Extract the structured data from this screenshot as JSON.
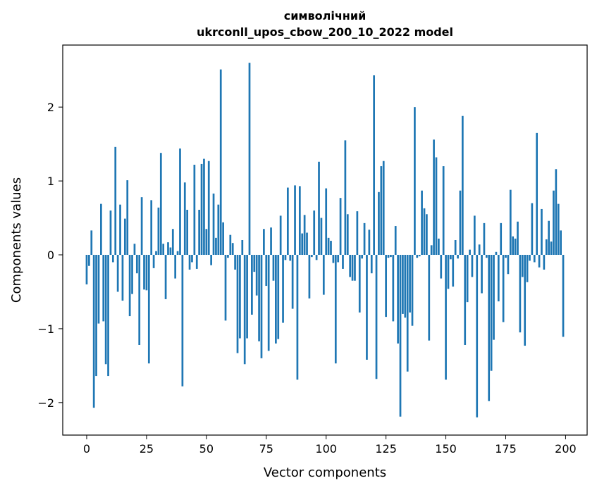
{
  "chart_data": {
    "type": "bar",
    "title_line1": "символічний",
    "title_line2": "ukrconll_upos_cbow_200_10_2022 model",
    "xlabel": "Vector components",
    "ylabel": "Components values",
    "xlim": [
      -10,
      209
    ],
    "ylim": [
      -2.44,
      2.84
    ],
    "xticks": [
      0,
      25,
      50,
      75,
      100,
      125,
      150,
      175,
      200
    ],
    "yticks": [
      -2,
      -1,
      0,
      1,
      2
    ],
    "ytick_labels": [
      "−2",
      "−1",
      "0",
      "1",
      "2"
    ],
    "bar_color": "#1f77b4",
    "grid": false,
    "x": [
      0,
      1,
      2,
      3,
      4,
      5,
      6,
      7,
      8,
      9,
      10,
      11,
      12,
      13,
      14,
      15,
      16,
      17,
      18,
      19,
      20,
      21,
      22,
      23,
      24,
      25,
      26,
      27,
      28,
      29,
      30,
      31,
      32,
      33,
      34,
      35,
      36,
      37,
      38,
      39,
      40,
      41,
      42,
      43,
      44,
      45,
      46,
      47,
      48,
      49,
      50,
      51,
      52,
      53,
      54,
      55,
      56,
      57,
      58,
      59,
      60,
      61,
      62,
      63,
      64,
      65,
      66,
      67,
      68,
      69,
      70,
      71,
      72,
      73,
      74,
      75,
      76,
      77,
      78,
      79,
      80,
      81,
      82,
      83,
      84,
      85,
      86,
      87,
      88,
      89,
      90,
      91,
      92,
      93,
      94,
      95,
      96,
      97,
      98,
      99,
      100,
      101,
      102,
      103,
      104,
      105,
      106,
      107,
      108,
      109,
      110,
      111,
      112,
      113,
      114,
      115,
      116,
      117,
      118,
      119,
      120,
      121,
      122,
      123,
      124,
      125,
      126,
      127,
      128,
      129,
      130,
      131,
      132,
      133,
      134,
      135,
      136,
      137,
      138,
      139,
      140,
      141,
      142,
      143,
      144,
      145,
      146,
      147,
      148,
      149,
      150,
      151,
      152,
      153,
      154,
      155,
      156,
      157,
      158,
      159,
      160,
      161,
      162,
      163,
      164,
      165,
      166,
      167,
      168,
      169,
      170,
      171,
      172,
      173,
      174,
      175,
      176,
      177,
      178,
      179,
      180,
      181,
      182,
      183,
      184,
      185,
      186,
      187,
      188,
      189,
      190,
      191,
      192,
      193,
      194,
      195,
      196,
      197,
      198,
      199
    ],
    "values": [
      -0.4,
      -0.15,
      0.33,
      -2.07,
      -1.64,
      -0.93,
      0.69,
      -0.9,
      -1.48,
      -1.64,
      0.6,
      -0.1,
      1.46,
      -0.5,
      0.68,
      -0.62,
      0.49,
      1.01,
      -0.83,
      -0.53,
      0.15,
      -0.25,
      -1.22,
      0.78,
      -0.47,
      -0.48,
      -1.47,
      0.74,
      -0.18,
      0.05,
      0.64,
      1.38,
      0.15,
      -0.6,
      0.17,
      0.1,
      0.35,
      -0.32,
      0.05,
      1.44,
      -1.78,
      0.98,
      0.61,
      -0.2,
      -0.1,
      1.22,
      -0.19,
      0.61,
      1.23,
      1.3,
      0.35,
      1.27,
      -0.14,
      0.83,
      0.23,
      0.68,
      2.51,
      0.44,
      -0.89,
      -0.04,
      0.27,
      0.16,
      -0.2,
      -1.33,
      -1.13,
      0.2,
      -1.48,
      -1.13,
      2.6,
      -0.81,
      -0.23,
      -0.55,
      -1.17,
      -1.4,
      0.35,
      -0.42,
      -1.3,
      0.37,
      -0.35,
      -1.2,
      -1.14,
      0.53,
      -0.92,
      -0.07,
      0.91,
      -0.08,
      -0.73,
      0.94,
      -1.69,
      0.93,
      0.29,
      0.54,
      0.3,
      -0.59,
      -0.03,
      0.6,
      -0.07,
      1.26,
      0.5,
      -0.54,
      0.9,
      0.23,
      0.19,
      -0.11,
      -1.47,
      -0.1,
      0.77,
      -0.19,
      1.55,
      0.55,
      -0.3,
      -0.35,
      -0.35,
      0.59,
      -0.78,
      -0.05,
      0.43,
      -1.42,
      0.34,
      -0.25,
      2.43,
      -1.68,
      0.85,
      1.2,
      1.27,
      -0.84,
      -0.04,
      -0.03,
      -0.9,
      0.39,
      -1.2,
      -2.19,
      -0.8,
      -0.85,
      -1.58,
      -0.78,
      -0.96,
      2.0,
      -0.04,
      -0.02,
      0.87,
      0.63,
      0.55,
      -1.16,
      0.13,
      1.56,
      1.32,
      0.22,
      -0.32,
      1.2,
      -1.69,
      -0.46,
      -0.06,
      -0.43,
      0.2,
      -0.05,
      0.87,
      1.88,
      -1.22,
      -0.64,
      0.07,
      -0.3,
      0.53,
      -2.2,
      0.14,
      -0.52,
      0.43,
      -0.04,
      -1.98,
      -1.57,
      -1.15,
      0.04,
      -0.63,
      0.43,
      -0.91,
      -0.04,
      -0.26,
      0.88,
      0.25,
      0.22,
      0.45,
      -1.05,
      -0.3,
      -1.23,
      -0.37,
      -0.08,
      0.7,
      -0.1,
      1.65,
      -0.17,
      0.62,
      -0.2,
      0.21,
      0.46,
      0.18,
      0.87,
      1.16,
      0.69,
      0.33,
      -1.11
    ]
  }
}
